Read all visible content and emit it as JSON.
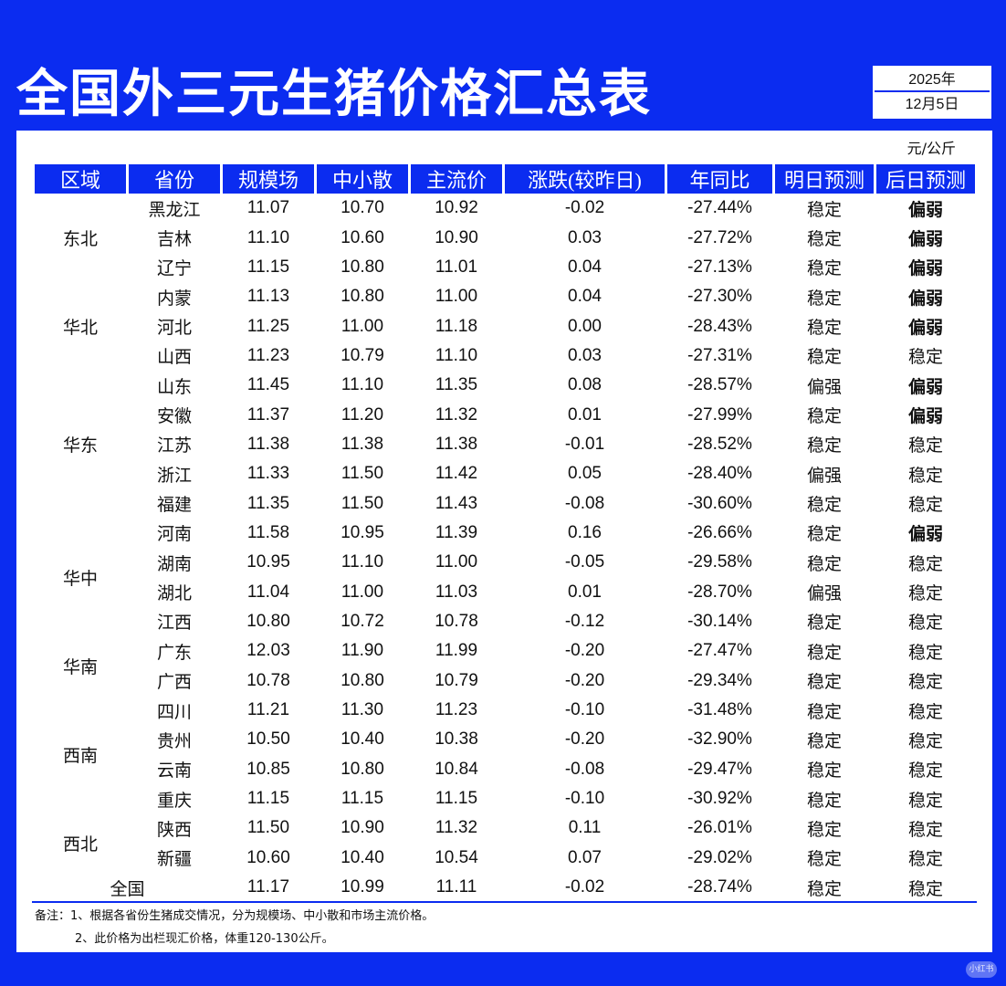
{
  "title": "全国外三元生猪价格汇总表",
  "date": {
    "year": "2025年",
    "day": "12月5日"
  },
  "unit": "元/公斤",
  "headers": [
    "区域",
    "省份",
    "规模场",
    "中小散",
    "主流价",
    "涨跌(较昨日)",
    "年同比",
    "明日预测",
    "后日预测"
  ],
  "regions": [
    {
      "name": "东北",
      "rows": 3
    },
    {
      "name": "华北",
      "rows": 3
    },
    {
      "name": "华东",
      "rows": 5
    },
    {
      "name": "华中",
      "rows": 4
    },
    {
      "name": "华南",
      "rows": 2
    },
    {
      "name": "西南",
      "rows": 4
    },
    {
      "name": "西北",
      "rows": 2
    }
  ],
  "rows": [
    {
      "province": "黑龙江",
      "large": "11.07",
      "small": "10.70",
      "main": "10.92",
      "change": "-0.02",
      "change_dir": "down",
      "yoy": "-27.44%",
      "tomorrow": "稳定",
      "tomorrow_cls": "stable",
      "after": "偏弱",
      "after_cls": "weak"
    },
    {
      "province": "吉林",
      "large": "11.10",
      "small": "10.60",
      "main": "10.90",
      "change": "0.03",
      "change_dir": "up",
      "yoy": "-27.72%",
      "tomorrow": "稳定",
      "tomorrow_cls": "stable",
      "after": "偏弱",
      "after_cls": "weak"
    },
    {
      "province": "辽宁",
      "large": "11.15",
      "small": "10.80",
      "main": "11.01",
      "change": "0.04",
      "change_dir": "up",
      "yoy": "-27.13%",
      "tomorrow": "稳定",
      "tomorrow_cls": "stable",
      "after": "偏弱",
      "after_cls": "weak"
    },
    {
      "province": "内蒙",
      "large": "11.13",
      "small": "10.80",
      "main": "11.00",
      "change": "0.04",
      "change_dir": "up",
      "yoy": "-27.30%",
      "tomorrow": "稳定",
      "tomorrow_cls": "stable",
      "after": "偏弱",
      "after_cls": "weak"
    },
    {
      "province": "河北",
      "large": "11.25",
      "small": "11.00",
      "main": "11.18",
      "change": "0.00",
      "change_dir": "flat",
      "yoy": "-28.43%",
      "tomorrow": "稳定",
      "tomorrow_cls": "stable",
      "after": "偏弱",
      "after_cls": "weak"
    },
    {
      "province": "山西",
      "large": "11.23",
      "small": "10.79",
      "main": "11.10",
      "change": "0.03",
      "change_dir": "up",
      "yoy": "-27.31%",
      "tomorrow": "稳定",
      "tomorrow_cls": "stable",
      "after": "稳定",
      "after_cls": "stable"
    },
    {
      "province": "山东",
      "large": "11.45",
      "small": "11.10",
      "main": "11.35",
      "change": "0.08",
      "change_dir": "up",
      "yoy": "-28.57%",
      "tomorrow": "偏强",
      "tomorrow_cls": "strong",
      "after": "偏弱",
      "after_cls": "weak"
    },
    {
      "province": "安徽",
      "large": "11.37",
      "small": "11.20",
      "main": "11.32",
      "change": "0.01",
      "change_dir": "up",
      "yoy": "-27.99%",
      "tomorrow": "稳定",
      "tomorrow_cls": "stable",
      "after": "偏弱",
      "after_cls": "weak"
    },
    {
      "province": "江苏",
      "large": "11.38",
      "small": "11.38",
      "main": "11.38",
      "change": "-0.01",
      "change_dir": "down",
      "yoy": "-28.52%",
      "tomorrow": "稳定",
      "tomorrow_cls": "stable",
      "after": "稳定",
      "after_cls": "stable"
    },
    {
      "province": "浙江",
      "large": "11.33",
      "small": "11.50",
      "main": "11.42",
      "change": "0.05",
      "change_dir": "up",
      "yoy": "-28.40%",
      "tomorrow": "偏强",
      "tomorrow_cls": "strong",
      "after": "稳定",
      "after_cls": "stable"
    },
    {
      "province": "福建",
      "large": "11.35",
      "small": "11.50",
      "main": "11.43",
      "change": "-0.08",
      "change_dir": "down",
      "yoy": "-30.60%",
      "tomorrow": "稳定",
      "tomorrow_cls": "stable",
      "after": "稳定",
      "after_cls": "stable"
    },
    {
      "province": "河南",
      "large": "11.58",
      "small": "10.95",
      "main": "11.39",
      "change": "0.16",
      "change_dir": "up",
      "yoy": "-26.66%",
      "tomorrow": "稳定",
      "tomorrow_cls": "stable",
      "after": "偏弱",
      "after_cls": "weak"
    },
    {
      "province": "湖南",
      "large": "10.95",
      "small": "11.10",
      "main": "11.00",
      "change": "-0.05",
      "change_dir": "down",
      "yoy": "-29.58%",
      "tomorrow": "稳定",
      "tomorrow_cls": "stable",
      "after": "稳定",
      "after_cls": "stable"
    },
    {
      "province": "湖北",
      "large": "11.04",
      "small": "11.00",
      "main": "11.03",
      "change": "0.01",
      "change_dir": "up",
      "yoy": "-28.70%",
      "tomorrow": "偏强",
      "tomorrow_cls": "strong",
      "after": "稳定",
      "after_cls": "stable"
    },
    {
      "province": "江西",
      "large": "10.80",
      "small": "10.72",
      "main": "10.78",
      "change": "-0.12",
      "change_dir": "down",
      "yoy": "-30.14%",
      "tomorrow": "稳定",
      "tomorrow_cls": "stable",
      "after": "稳定",
      "after_cls": "stable"
    },
    {
      "province": "广东",
      "large": "12.03",
      "small": "11.90",
      "main": "11.99",
      "change": "-0.20",
      "change_dir": "down",
      "yoy": "-27.47%",
      "tomorrow": "稳定",
      "tomorrow_cls": "stable",
      "after": "稳定",
      "after_cls": "stable"
    },
    {
      "province": "广西",
      "large": "10.78",
      "small": "10.80",
      "main": "10.79",
      "change": "-0.20",
      "change_dir": "down",
      "yoy": "-29.34%",
      "tomorrow": "稳定",
      "tomorrow_cls": "stable",
      "after": "稳定",
      "after_cls": "stable"
    },
    {
      "province": "四川",
      "large": "11.21",
      "small": "11.30",
      "main": "11.23",
      "change": "-0.10",
      "change_dir": "down",
      "yoy": "-31.48%",
      "tomorrow": "稳定",
      "tomorrow_cls": "stable",
      "after": "稳定",
      "after_cls": "stable"
    },
    {
      "province": "贵州",
      "large": "10.50",
      "small": "10.40",
      "main": "10.38",
      "change": "-0.20",
      "change_dir": "down",
      "yoy": "-32.90%",
      "tomorrow": "稳定",
      "tomorrow_cls": "stable",
      "after": "稳定",
      "after_cls": "stable"
    },
    {
      "province": "云南",
      "large": "10.85",
      "small": "10.80",
      "main": "10.84",
      "change": "-0.08",
      "change_dir": "down",
      "yoy": "-29.47%",
      "tomorrow": "稳定",
      "tomorrow_cls": "stable",
      "after": "稳定",
      "after_cls": "stable"
    },
    {
      "province": "重庆",
      "large": "11.15",
      "small": "11.15",
      "main": "11.15",
      "change": "-0.10",
      "change_dir": "down",
      "yoy": "-30.92%",
      "tomorrow": "稳定",
      "tomorrow_cls": "stable",
      "after": "稳定",
      "after_cls": "stable"
    },
    {
      "province": "陕西",
      "large": "11.50",
      "small": "10.90",
      "main": "11.32",
      "change": "0.11",
      "change_dir": "up",
      "yoy": "-26.01%",
      "tomorrow": "稳定",
      "tomorrow_cls": "stable",
      "after": "稳定",
      "after_cls": "stable"
    },
    {
      "province": "新疆",
      "large": "10.60",
      "small": "10.40",
      "main": "10.54",
      "change": "0.07",
      "change_dir": "up",
      "yoy": "-29.02%",
      "tomorrow": "稳定",
      "tomorrow_cls": "stable",
      "after": "稳定",
      "after_cls": "stable"
    }
  ],
  "national": {
    "label": "全国",
    "large": "11.17",
    "small": "10.99",
    "main": "11.11",
    "change": "-0.02",
    "change_dir": "down",
    "yoy": "-28.74%",
    "tomorrow": "稳定",
    "tomorrow_cls": "stable",
    "after": "稳定",
    "after_cls": "stable"
  },
  "notes": [
    "备注：1、根据各省份生猪成交情况，分为规模场、中小散和市场主流价格。",
    "2、此价格为出栏现汇价格，体重120-130公斤。"
  ],
  "watermark": "小红书",
  "colors": {
    "background": "#0b2cf0",
    "up": "#e8194a",
    "down": "#22c13b"
  }
}
